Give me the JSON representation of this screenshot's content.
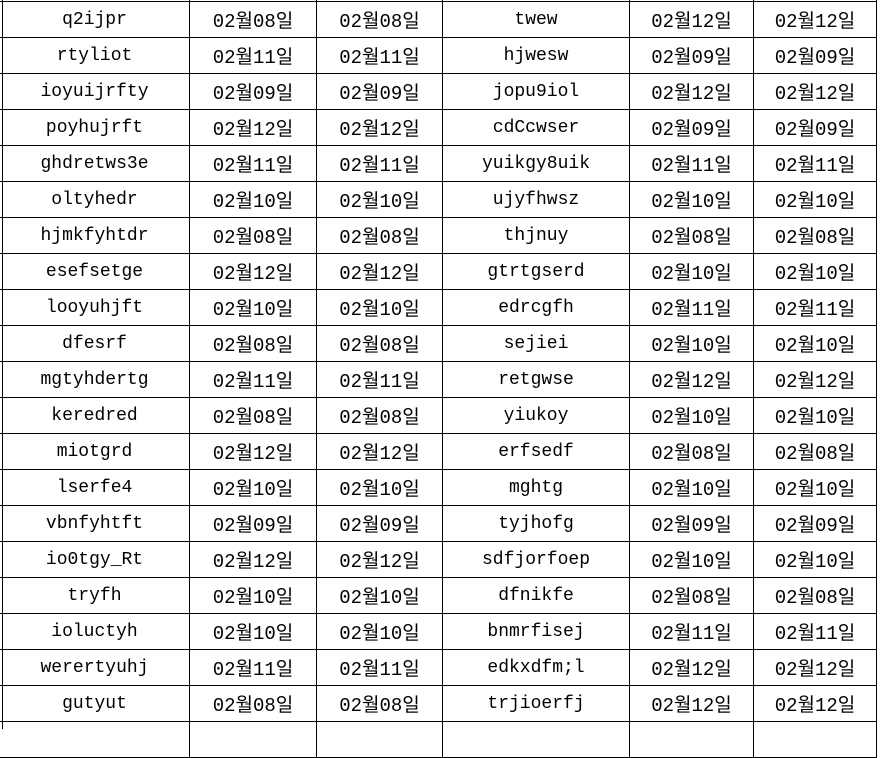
{
  "colors": {
    "background": "#ffffff",
    "border": "#000000",
    "text": "#000000"
  },
  "table": {
    "column_kinds": [
      "name",
      "date",
      "date",
      "name",
      "date",
      "date"
    ],
    "rows": [
      [
        "q2ijpr",
        "02월08일",
        "02월08일",
        "twew",
        "02월12일",
        "02월12일"
      ],
      [
        "rtyliot",
        "02월11일",
        "02월11일",
        "hjwesw",
        "02월09일",
        "02월09일"
      ],
      [
        "ioyuijrfty",
        "02월09일",
        "02월09일",
        "jopu9iol",
        "02월12일",
        "02월12일"
      ],
      [
        "poyhujrft",
        "02월12일",
        "02월12일",
        "cdCcwser",
        "02월09일",
        "02월09일"
      ],
      [
        "ghdretws3e",
        "02월11일",
        "02월11일",
        "yuikgy8uik",
        "02월11일",
        "02월11일"
      ],
      [
        "oltyhedr",
        "02월10일",
        "02월10일",
        "ujyfhwsz",
        "02월10일",
        "02월10일"
      ],
      [
        "hjmkfyhtdr",
        "02월08일",
        "02월08일",
        "thjnuy",
        "02월08일",
        "02월08일"
      ],
      [
        "esefsetge",
        "02월12일",
        "02월12일",
        "gtrtgserd",
        "02월10일",
        "02월10일"
      ],
      [
        "looyuhjft",
        "02월10일",
        "02월10일",
        "edrcgfh",
        "02월11일",
        "02월11일"
      ],
      [
        "dfesrf",
        "02월08일",
        "02월08일",
        "sejiei",
        "02월10일",
        "02월10일"
      ],
      [
        "mgtyhdertg",
        "02월11일",
        "02월11일",
        "retgwse",
        "02월12일",
        "02월12일"
      ],
      [
        "keredred",
        "02월08일",
        "02월08일",
        "yiukoy",
        "02월10일",
        "02월10일"
      ],
      [
        "miotgrd",
        "02월12일",
        "02월12일",
        "erfsedf",
        "02월08일",
        "02월08일"
      ],
      [
        "lserfe4",
        "02월10일",
        "02월10일",
        "mghtg",
        "02월10일",
        "02월10일"
      ],
      [
        "vbnfyhtft",
        "02월09일",
        "02월09일",
        "tyjhofg",
        "02월09일",
        "02월09일"
      ],
      [
        "io0tgy_Rt",
        "02월12일",
        "02월12일",
        "sdfjorfoep",
        "02월10일",
        "02월10일"
      ],
      [
        "tryfh",
        "02월10일",
        "02월10일",
        "dfnikfe",
        "02월08일",
        "02월08일"
      ],
      [
        "ioluctyh",
        "02월10일",
        "02월10일",
        "bnmrfisej",
        "02월11일",
        "02월11일"
      ],
      [
        "werertyuhj",
        "02월11일",
        "02월11일",
        "edkxdfm;l",
        "02월12일",
        "02월12일"
      ],
      [
        "gutyut",
        "02월08일",
        "02월08일",
        "trjioerfj",
        "02월12일",
        "02월12일"
      ]
    ]
  }
}
